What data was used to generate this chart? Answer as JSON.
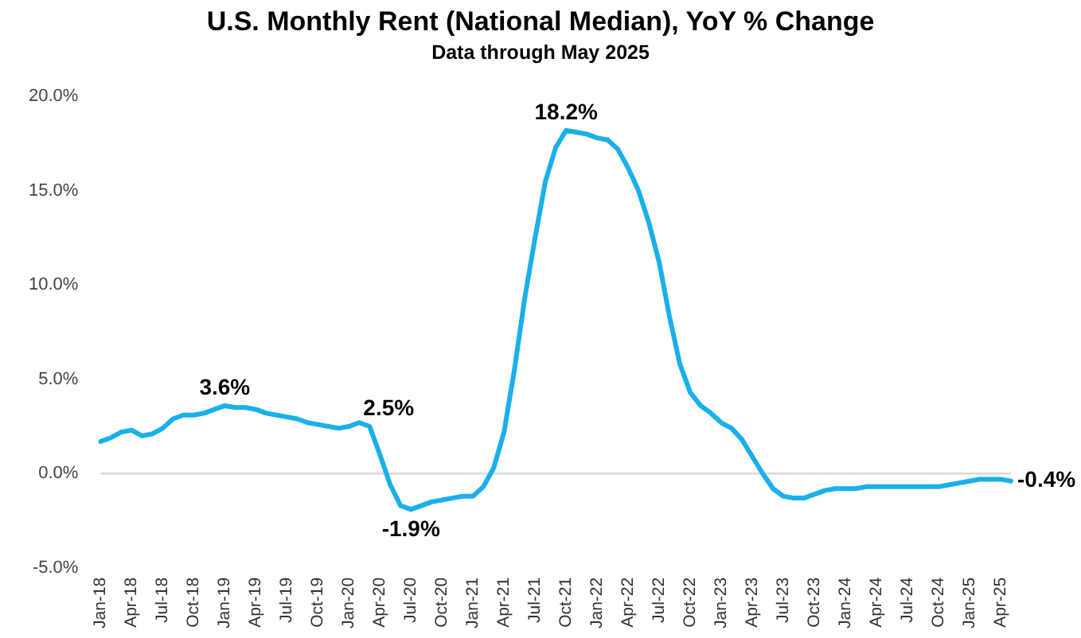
{
  "chart_data": {
    "type": "line",
    "title": "U.S. Monthly Rent (National Median), YoY % Change",
    "subtitle": "Data through May 2025",
    "categories": [
      "Jan-18",
      null,
      null,
      "Apr-18",
      null,
      null,
      "Jul-18",
      null,
      null,
      "Oct-18",
      null,
      null,
      "Jan-19",
      null,
      null,
      "Apr-19",
      null,
      null,
      "Jul-19",
      null,
      null,
      "Oct-19",
      null,
      null,
      "Jan-20",
      null,
      null,
      "Apr-20",
      null,
      null,
      "Jul-20",
      null,
      null,
      "Oct-20",
      null,
      null,
      "Jan-21",
      null,
      null,
      "Apr-21",
      null,
      null,
      "Jul-21",
      null,
      null,
      "Oct-21",
      null,
      null,
      "Jan-22",
      null,
      null,
      "Apr-22",
      null,
      null,
      "Jul-22",
      null,
      null,
      "Oct-22",
      null,
      null,
      "Jan-23",
      null,
      null,
      "Apr-23",
      null,
      null,
      "Jul-23",
      null,
      null,
      "Oct-23",
      null,
      null,
      "Jan-24",
      null,
      null,
      "Apr-24",
      null,
      null,
      "Jul-24",
      null,
      null,
      "Oct-24",
      null,
      null,
      "Jan-25",
      null,
      null,
      "Apr-25",
      null
    ],
    "series": [
      {
        "color": "#1ab0ea",
        "values": [
          1.7,
          1.9,
          2.2,
          2.3,
          2.0,
          2.1,
          2.4,
          2.9,
          3.1,
          3.1,
          3.2,
          3.4,
          3.6,
          3.5,
          3.5,
          3.4,
          3.2,
          3.1,
          3.0,
          2.9,
          2.7,
          2.6,
          2.5,
          2.4,
          2.5,
          2.7,
          2.5,
          1.0,
          -0.6,
          -1.7,
          -1.9,
          -1.7,
          -1.5,
          -1.4,
          -1.3,
          -1.2,
          -1.2,
          -0.7,
          0.3,
          2.2,
          5.5,
          9.3,
          12.5,
          15.5,
          17.3,
          18.2,
          18.1,
          18.0,
          17.8,
          17.7,
          17.2,
          16.2,
          15.0,
          13.3,
          11.2,
          8.3,
          5.8,
          4.3,
          3.6,
          3.2,
          2.7,
          2.4,
          1.8,
          0.9,
          0.0,
          -0.8,
          -1.2,
          -1.3,
          -1.3,
          -1.1,
          -0.9,
          -0.8,
          -0.8,
          -0.8,
          -0.7,
          -0.7,
          -0.7,
          -0.7,
          -0.7,
          -0.7,
          -0.7,
          -0.7,
          -0.6,
          -0.5,
          -0.4,
          -0.3,
          -0.3,
          -0.3,
          -0.4
        ],
        "value_labels": [
          null,
          null,
          null,
          null,
          null,
          null,
          null,
          null,
          null,
          null,
          null,
          null,
          "3.6%",
          null,
          null,
          null,
          null,
          null,
          null,
          null,
          null,
          null,
          null,
          null,
          null,
          null,
          "2.5%",
          null,
          null,
          null,
          "-1.9%",
          null,
          null,
          null,
          null,
          null,
          null,
          null,
          null,
          null,
          null,
          null,
          null,
          null,
          null,
          "18.2%",
          null,
          null,
          null,
          null,
          null,
          null,
          null,
          null,
          null,
          null,
          null,
          null,
          null,
          null,
          null,
          null,
          null,
          null,
          null,
          null,
          null,
          null,
          null,
          null,
          null,
          null,
          null,
          null,
          null,
          null,
          null,
          null,
          null,
          null,
          null,
          null,
          null,
          null,
          null,
          null,
          null,
          null,
          "-0.4%"
        ]
      }
    ],
    "ylim": [
      -5,
      20
    ],
    "yticks": [
      {
        "value": -5,
        "label": "-5.0%"
      },
      {
        "value": 0,
        "label": "0.0%"
      },
      {
        "value": 5,
        "label": "5.0%"
      },
      {
        "value": 10,
        "label": "10.0%"
      },
      {
        "value": 15,
        "label": "15.0%"
      },
      {
        "value": 20,
        "label": "20.0%"
      }
    ],
    "ref_lines": [
      {
        "axis": "y",
        "value": 0,
        "color": "#d9d9d9"
      }
    ],
    "grid": false,
    "legend": false,
    "marker": "none",
    "line_style": "solid"
  }
}
